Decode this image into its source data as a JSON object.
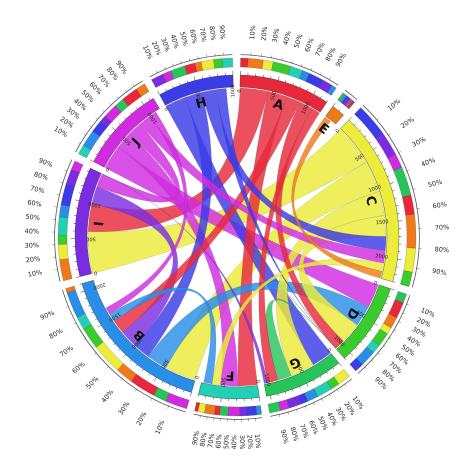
{
  "chart_data": {
    "type": "chord",
    "title": "",
    "segments": [
      {
        "label": "A",
        "size": 1200,
        "color": "#e8283a",
        "ticks": [
          0,
          500,
          1000
        ]
      },
      {
        "label": "E",
        "size": 180,
        "color": "#f07a1a",
        "ticks": []
      },
      {
        "label": "C",
        "size": 2300,
        "color": "#ecec3a",
        "ticks": [
          0,
          500,
          1000,
          1500,
          2000
        ]
      },
      {
        "label": "D",
        "size": 1100,
        "color": "#3acc2c",
        "ticks": [
          0,
          500,
          1000
        ]
      },
      {
        "label": "G",
        "size": 1050,
        "color": "#27c45a",
        "ticks": [
          0,
          500,
          1000
        ]
      },
      {
        "label": "F",
        "size": 800,
        "color": "#24d0b4",
        "ticks": [
          0,
          500
        ]
      },
      {
        "label": "B",
        "size": 2100,
        "color": "#2a8ee8",
        "ticks": [
          0,
          500,
          1000,
          1500,
          2000
        ]
      },
      {
        "label": "I",
        "size": 1450,
        "color": "#7a2de0",
        "ticks": [
          0,
          500,
          1000
        ]
      },
      {
        "label": "J",
        "size": 1150,
        "color": "#d12be0",
        "ticks": [
          0,
          500,
          1000
        ]
      },
      {
        "label": "H",
        "size": 1000,
        "color": "#3b3be8",
        "ticks": [
          0,
          500,
          1000
        ]
      }
    ],
    "links": [
      {
        "from": "I",
        "to": "C",
        "value": 600,
        "color": "#ecec3a"
      },
      {
        "from": "B",
        "to": "C",
        "value": 450,
        "color": "#ecec3a"
      },
      {
        "from": "I",
        "to": "A",
        "value": 400,
        "color": "#e8283a"
      },
      {
        "from": "J",
        "to": "D",
        "value": 350,
        "color": "#d12be0"
      },
      {
        "from": "H",
        "to": "G",
        "value": 300,
        "color": "#3b3be8"
      },
      {
        "from": "A",
        "to": "F",
        "value": 280,
        "color": "#e8283a"
      },
      {
        "from": "J",
        "to": "F",
        "value": 250,
        "color": "#d12be0"
      },
      {
        "from": "B",
        "to": "D",
        "value": 300,
        "color": "#2a8ee8"
      },
      {
        "from": "C",
        "to": "G",
        "value": 350,
        "color": "#ecec3a"
      },
      {
        "from": "C",
        "to": "D",
        "value": 300,
        "color": "#ecec3a"
      },
      {
        "from": "H",
        "to": "B",
        "value": 250,
        "color": "#3b3be8"
      },
      {
        "from": "I",
        "to": "B",
        "value": 250,
        "color": "#7a2de0"
      },
      {
        "from": "A",
        "to": "B",
        "value": 200,
        "color": "#e8283a"
      },
      {
        "from": "J",
        "to": "I",
        "value": 200,
        "color": "#d12be0"
      },
      {
        "from": "H",
        "to": "C",
        "value": 200,
        "color": "#3b3be8"
      },
      {
        "from": "A",
        "to": "D",
        "value": 200,
        "color": "#e8283a"
      },
      {
        "from": "G",
        "to": "D",
        "value": 200,
        "color": "#27c45a"
      },
      {
        "from": "J",
        "to": "C",
        "value": 180,
        "color": "#d12be0"
      },
      {
        "from": "A",
        "to": "G",
        "value": 150,
        "color": "#e8283a"
      },
      {
        "from": "H",
        "to": "D",
        "value": 150,
        "color": "#3b3be8"
      },
      {
        "from": "I",
        "to": "G",
        "value": 150,
        "color": "#7a2de0"
      },
      {
        "from": "C",
        "to": "F",
        "value": 120,
        "color": "#ecec3a"
      },
      {
        "from": "E",
        "to": "C",
        "value": 100,
        "color": "#f07a1a"
      },
      {
        "from": "B",
        "to": "F",
        "value": 120,
        "color": "#2a8ee8"
      },
      {
        "from": "J",
        "to": "B",
        "value": 100,
        "color": "#d12be0"
      },
      {
        "from": "D",
        "to": "D",
        "value": 80,
        "color": "#3acc2c"
      }
    ],
    "outer_percent_labels": [
      "10%",
      "20%",
      "30%",
      "40%",
      "50%",
      "60%",
      "70%",
      "80%",
      "90%"
    ],
    "outer_palette": [
      "#e8283a",
      "#f07a1a",
      "#ecec3a",
      "#3acc2c",
      "#24d0b4",
      "#2a8ee8",
      "#3b3be8",
      "#7a2de0",
      "#d12be0",
      "#27c45a"
    ]
  }
}
